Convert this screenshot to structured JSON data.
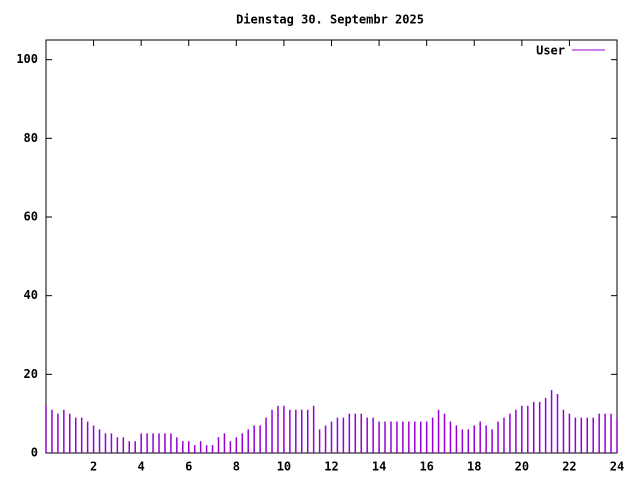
{
  "chart_data": {
    "type": "impulse",
    "title": "Dienstag 30. Septembr 2025",
    "series": [
      {
        "name": "User",
        "color": "#9400d3",
        "x": [
          0,
          0.25,
          0.5,
          0.75,
          1,
          1.25,
          1.5,
          1.75,
          2,
          2.25,
          2.5,
          2.75,
          3,
          3.25,
          3.5,
          3.75,
          4,
          4.25,
          4.5,
          4.75,
          5,
          5.25,
          5.5,
          5.75,
          6,
          6.25,
          6.5,
          6.75,
          7,
          7.25,
          7.5,
          7.75,
          8,
          8.25,
          8.5,
          8.75,
          9,
          9.25,
          9.5,
          9.75,
          10,
          10.25,
          10.5,
          10.75,
          11,
          11.25,
          11.5,
          11.75,
          12,
          12.25,
          12.5,
          12.75,
          13,
          13.25,
          13.5,
          13.75,
          14,
          14.25,
          14.5,
          14.75,
          15,
          15.25,
          15.5,
          15.75,
          16,
          16.25,
          16.5,
          16.75,
          17,
          17.25,
          17.5,
          17.75,
          18,
          18.25,
          18.5,
          18.75,
          19,
          19.25,
          19.5,
          19.75,
          20,
          20.25,
          20.5,
          20.75,
          21,
          21.25,
          21.5,
          21.75,
          22,
          22.25,
          22.5,
          22.75,
          23,
          23.25,
          23.5,
          23.75,
          24
        ],
        "values": [
          12,
          11,
          10,
          11,
          10,
          9,
          9,
          8,
          7,
          6,
          5,
          5,
          4,
          4,
          3,
          3,
          5,
          5,
          5,
          5,
          5,
          5,
          4,
          3,
          3,
          2,
          3,
          2,
          2,
          4,
          5,
          3,
          4,
          5,
          6,
          7,
          7,
          9,
          11,
          12,
          12,
          11,
          11,
          11,
          11,
          12,
          6,
          7,
          8,
          9,
          9,
          10,
          10,
          10,
          9,
          9,
          8,
          8,
          8,
          8,
          8,
          8,
          8,
          8,
          8,
          9,
          11,
          10,
          8,
          7,
          6,
          6,
          7,
          8,
          7,
          6,
          8,
          9,
          10,
          11,
          12,
          12,
          13,
          13,
          14,
          16,
          15,
          11,
          10,
          9,
          9,
          9,
          9,
          10,
          10,
          10,
          9
        ]
      }
    ],
    "xlim": [
      0,
      24
    ],
    "xticks": [
      2,
      4,
      6,
      8,
      10,
      12,
      14,
      16,
      18,
      20,
      22,
      24
    ],
    "ylim": [
      0,
      105
    ],
    "yticks": [
      0,
      20,
      40,
      60,
      80,
      100
    ],
    "legend": "top-right"
  }
}
